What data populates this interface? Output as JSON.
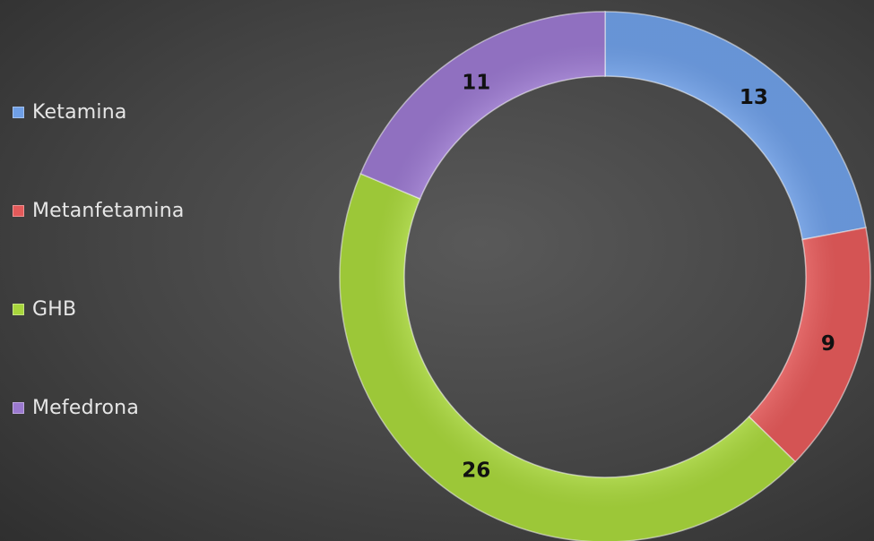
{
  "chart_data": {
    "type": "pie",
    "variant": "donut",
    "categories": [
      "Ketamina",
      "Metanfetamina",
      "GHB",
      "Mefedrona"
    ],
    "values": [
      13,
      9,
      26,
      11
    ],
    "colors": [
      "#6f9fe6",
      "#e45a5a",
      "#a8d63c",
      "#9b79cf"
    ],
    "legend_position": "left",
    "data_labels": true
  },
  "legend": [
    {
      "label": "Ketamina",
      "color": "#6f9fe6"
    },
    {
      "label": "Metanfetamina",
      "color": "#e45a5a"
    },
    {
      "label": "GHB",
      "color": "#a8d63c"
    },
    {
      "label": "Mefedrona",
      "color": "#9b79cf"
    }
  ]
}
